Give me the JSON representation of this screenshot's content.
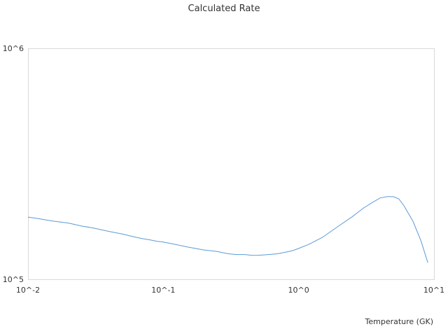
{
  "chart_data": {
    "type": "line",
    "title": "Calculated Rate",
    "xlabel": "Temperature (GK)",
    "ylabel": "",
    "x_scale": "log",
    "y_scale": "log",
    "xlim": [
      0.01,
      10
    ],
    "ylim": [
      100000,
      1000000
    ],
    "x_ticks": [
      {
        "value": 0.01,
        "label": "10^-2"
      },
      {
        "value": 0.1,
        "label": "10^-1"
      },
      {
        "value": 1,
        "label": "10^0"
      },
      {
        "value": 10,
        "label": "10^1"
      }
    ],
    "y_ticks": [
      {
        "value": 100000,
        "label": "10^5"
      },
      {
        "value": 1000000,
        "label": "10^6"
      }
    ],
    "grid": false,
    "legend": "none",
    "colors": {
      "line": "#5b9bd5",
      "frame": "#d9d9d9"
    },
    "series": [
      {
        "x": [
          0.01,
          0.012,
          0.015,
          0.02,
          0.025,
          0.03,
          0.04,
          0.05,
          0.06,
          0.07,
          0.08,
          0.09,
          0.1,
          0.12,
          0.15,
          0.2,
          0.25,
          0.3,
          0.35,
          0.4,
          0.45,
          0.5,
          0.6,
          0.7,
          0.8,
          0.9,
          1.0,
          1.2,
          1.5,
          2.0,
          2.5,
          3.0,
          3.5,
          4.0,
          4.5,
          5.0,
          5.5,
          6.0,
          7.0,
          8.0,
          9.0
        ],
        "y": [
          186000,
          183000,
          179000,
          175000,
          170000,
          167000,
          161000,
          157000,
          153000,
          150000,
          148000,
          146000,
          145000,
          142000,
          138000,
          134000,
          132000,
          129000,
          128000,
          128000,
          127000,
          127000,
          128000,
          129000,
          131000,
          133000,
          136000,
          142000,
          152000,
          171000,
          187000,
          203000,
          215000,
          225000,
          228000,
          228000,
          223000,
          208000,
          178000,
          147000,
          118000
        ]
      }
    ]
  }
}
